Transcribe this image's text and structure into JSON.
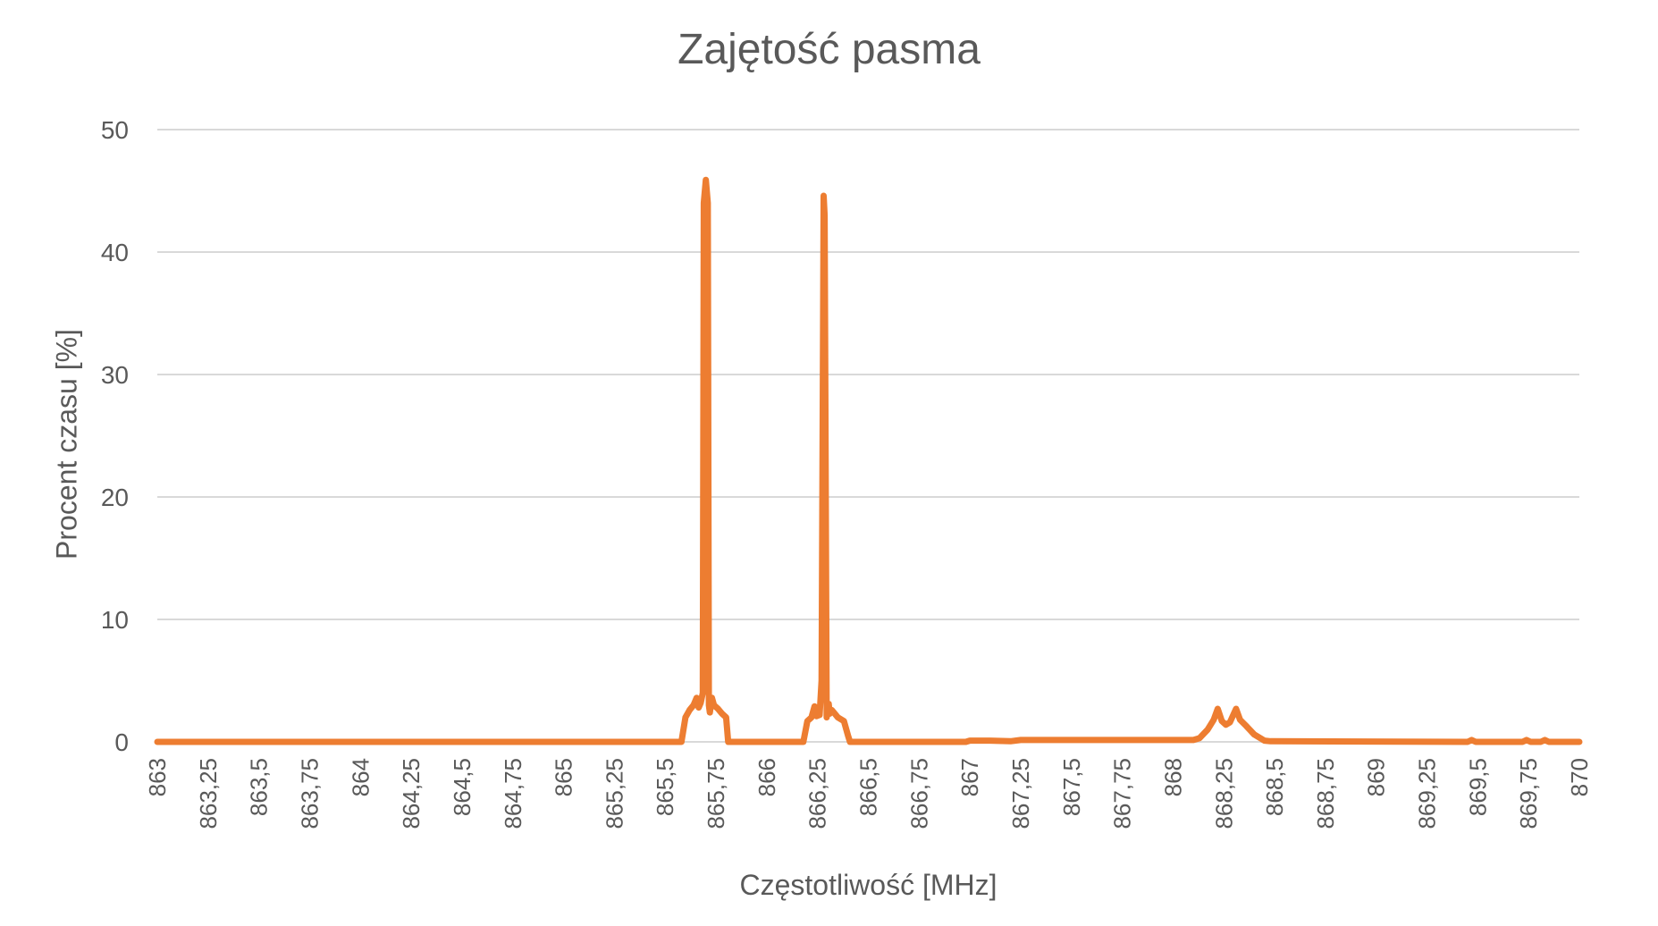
{
  "chart_data": {
    "type": "line",
    "title": "Zajętość pasma",
    "xlabel": "Częstotliwość [MHz]",
    "ylabel": "Procent czasu [%]",
    "xlim": [
      863,
      870
    ],
    "ylim": [
      0,
      50
    ],
    "y_ticks": [
      0,
      10,
      20,
      30,
      40,
      50
    ],
    "x_tick_labels": [
      "863",
      "863,25",
      "863,5",
      "863,75",
      "864",
      "864,25",
      "864,5",
      "864,75",
      "865",
      "865,25",
      "865,5",
      "865,75",
      "866",
      "866,25",
      "866,5",
      "866,75",
      "867",
      "867,25",
      "867,5",
      "867,75",
      "868",
      "868,25",
      "868,5",
      "868,75",
      "869",
      "869,25",
      "869,5",
      "869,75",
      "870"
    ],
    "grid": "horizontal",
    "legend": "none",
    "line_color": "#ED7D31",
    "gridline_color": "#D9D9D9",
    "series": [
      {
        "name": "Zajętość",
        "x": [
          863.0,
          865.58,
          865.6,
          865.62,
          865.64,
          865.655,
          865.665,
          865.675,
          865.685,
          865.69,
          865.7,
          865.71,
          865.715,
          865.72,
          865.73,
          865.74,
          865.76,
          865.78,
          865.8,
          865.81,
          866.18,
          866.2,
          866.22,
          866.235,
          866.245,
          866.26,
          866.27,
          866.28,
          866.285,
          866.295,
          866.305,
          866.31,
          866.32,
          866.33,
          866.35,
          866.38,
          866.4,
          866.41,
          866.98,
          867.0,
          867.1,
          867.2,
          867.25,
          867.5,
          867.75,
          868.0,
          868.1,
          868.13,
          868.17,
          868.2,
          868.22,
          868.24,
          868.26,
          868.28,
          868.31,
          868.33,
          868.36,
          868.4,
          868.45,
          868.48,
          869.45,
          869.47,
          869.49,
          869.72,
          869.74,
          869.76,
          869.81,
          869.83,
          869.85,
          870.0
        ],
        "y": [
          0,
          0,
          2.0,
          2.6,
          3.0,
          3.6,
          2.8,
          3.2,
          4.0,
          44.0,
          45.9,
          44.0,
          3.0,
          2.4,
          3.6,
          3.0,
          2.7,
          2.3,
          2.0,
          0,
          0,
          1.7,
          2.0,
          2.9,
          2.1,
          2.2,
          5.0,
          44.6,
          43.0,
          2.0,
          3.1,
          2.3,
          2.6,
          2.4,
          2.0,
          1.7,
          0.5,
          0,
          0,
          0.1,
          0.1,
          0.05,
          0.15,
          0.15,
          0.15,
          0.15,
          0.15,
          0.3,
          1.0,
          1.8,
          2.7,
          1.7,
          1.4,
          1.6,
          2.7,
          1.8,
          1.3,
          0.6,
          0.1,
          0.05,
          0,
          0.15,
          0,
          0,
          0.15,
          0,
          0,
          0.15,
          0,
          0
        ]
      }
    ]
  }
}
